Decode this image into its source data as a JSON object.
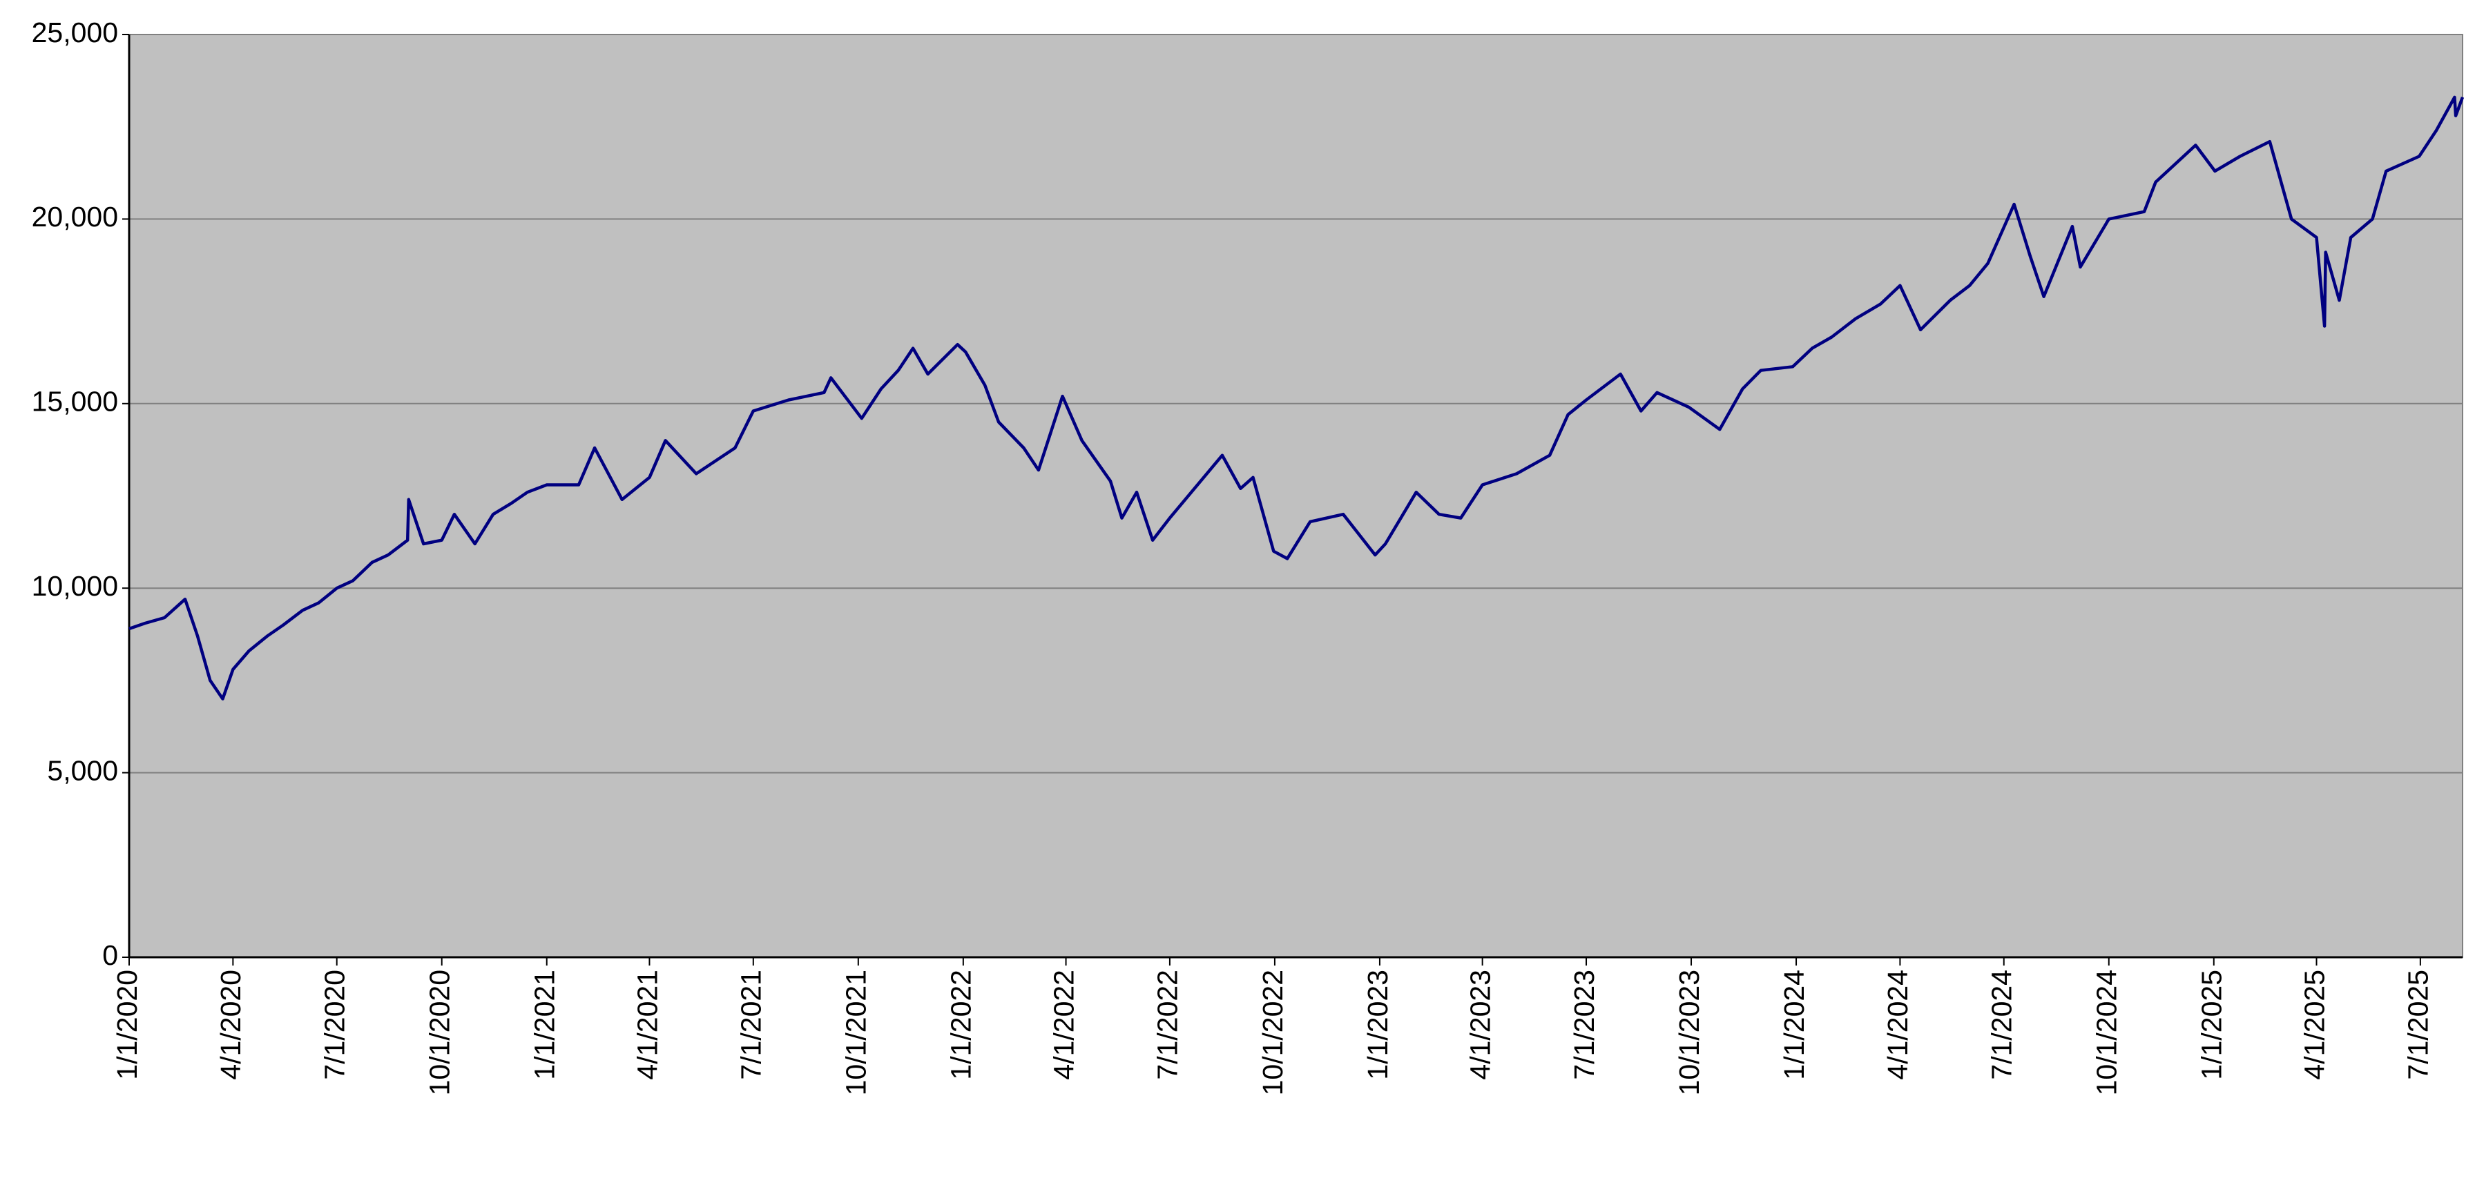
{
  "chart_data": {
    "type": "line",
    "x": [
      "2020-01-01",
      "2020-01-15",
      "2020-02-01",
      "2020-02-19",
      "2020-03-01",
      "2020-03-12",
      "2020-03-23",
      "2020-04-01",
      "2020-04-15",
      "2020-05-01",
      "2020-05-15",
      "2020-06-01",
      "2020-06-15",
      "2020-07-01",
      "2020-07-15",
      "2020-08-01",
      "2020-08-15",
      "2020-09-01",
      "2020-09-02",
      "2020-09-15",
      "2020-10-01",
      "2020-10-12",
      "2020-10-30",
      "2020-11-15",
      "2020-12-01",
      "2020-12-15",
      "2021-01-01",
      "2021-01-29",
      "2021-02-12",
      "2021-03-08",
      "2021-04-01",
      "2021-04-15",
      "2021-05-12",
      "2021-06-15",
      "2021-07-01",
      "2021-08-01",
      "2021-09-01",
      "2021-09-07",
      "2021-10-04",
      "2021-10-21",
      "2021-11-05",
      "2021-11-18",
      "2021-12-01",
      "2021-12-27",
      "2022-01-03",
      "2022-01-20",
      "2022-02-01",
      "2022-02-23",
      "2022-03-08",
      "2022-03-29",
      "2022-04-15",
      "2022-05-10",
      "2022-05-20",
      "2022-06-02",
      "2022-06-16",
      "2022-07-01",
      "2022-08-16",
      "2022-09-01",
      "2022-09-12",
      "2022-09-30",
      "2022-10-12",
      "2022-11-01",
      "2022-11-30",
      "2022-12-28",
      "2023-01-06",
      "2023-02-02",
      "2023-02-22",
      "2023-03-13",
      "2023-04-01",
      "2023-05-01",
      "2023-05-30",
      "2023-06-15",
      "2023-07-01",
      "2023-07-31",
      "2023-08-18",
      "2023-09-01",
      "2023-09-29",
      "2023-10-26",
      "2023-11-15",
      "2023-12-01",
      "2023-12-29",
      "2024-01-15",
      "2024-02-01",
      "2024-02-22",
      "2024-03-15",
      "2024-04-01",
      "2024-04-19",
      "2024-05-15",
      "2024-06-01",
      "2024-06-17",
      "2024-07-10",
      "2024-07-24",
      "2024-08-05",
      "2024-08-30",
      "2024-09-06",
      "2024-10-01",
      "2024-11-01",
      "2024-11-11",
      "2024-12-16",
      "2025-01-02",
      "2025-01-24",
      "2025-02-19",
      "2025-03-10",
      "2025-04-01",
      "2025-04-08",
      "2025-04-09",
      "2025-04-21",
      "2025-05-01",
      "2025-05-20",
      "2025-06-01",
      "2025-06-30",
      "2025-07-15",
      "2025-07-31",
      "2025-08-01",
      "2025-08-07"
    ],
    "values": [
      8900,
      9050,
      9200,
      9700,
      8700,
      7500,
      7000,
      7800,
      8300,
      8700,
      9000,
      9400,
      9600,
      10000,
      10200,
      10700,
      10900,
      11300,
      12400,
      11200,
      11300,
      12000,
      11200,
      12000,
      12300,
      12600,
      12800,
      12800,
      13800,
      12400,
      13000,
      14000,
      13100,
      13800,
      14800,
      15100,
      15300,
      15700,
      14600,
      15400,
      15900,
      16500,
      15800,
      16600,
      16400,
      15500,
      14500,
      13800,
      13200,
      15200,
      14000,
      12900,
      11900,
      12600,
      11300,
      11900,
      13600,
      12700,
      13000,
      11000,
      10800,
      11800,
      12000,
      10900,
      11200,
      12600,
      12000,
      11900,
      12800,
      13100,
      13600,
      14700,
      15100,
      15800,
      14800,
      15300,
      14900,
      14300,
      15400,
      15900,
      16000,
      16500,
      16800,
      17300,
      17700,
      18200,
      17000,
      17800,
      18200,
      18800,
      20400,
      19000,
      17900,
      19800,
      18700,
      20000,
      20200,
      21000,
      22000,
      21300,
      21700,
      22100,
      20000,
      19500,
      17100,
      19100,
      17800,
      19500,
      20000,
      21300,
      21700,
      22400,
      23300,
      22800,
      23300
    ],
    "color": "#000080",
    "xlim": [
      "2020-01-01",
      "2025-08-07"
    ],
    "xticks": [
      {
        "value": "2020-01-01",
        "label": "1/1/2020"
      },
      {
        "value": "2020-04-01",
        "label": "4/1/2020"
      },
      {
        "value": "2020-07-01",
        "label": "7/1/2020"
      },
      {
        "value": "2020-10-01",
        "label": "10/1/2020"
      },
      {
        "value": "2021-01-01",
        "label": "1/1/2021"
      },
      {
        "value": "2021-04-01",
        "label": "4/1/2021"
      },
      {
        "value": "2021-07-01",
        "label": "7/1/2021"
      },
      {
        "value": "2021-10-01",
        "label": "10/1/2021"
      },
      {
        "value": "2022-01-01",
        "label": "1/1/2022"
      },
      {
        "value": "2022-04-01",
        "label": "4/1/2022"
      },
      {
        "value": "2022-07-01",
        "label": "7/1/2022"
      },
      {
        "value": "2022-10-01",
        "label": "10/1/2022"
      },
      {
        "value": "2023-01-01",
        "label": "1/1/2023"
      },
      {
        "value": "2023-04-01",
        "label": "4/1/2023"
      },
      {
        "value": "2023-07-01",
        "label": "7/1/2023"
      },
      {
        "value": "2023-10-01",
        "label": "10/1/2023"
      },
      {
        "value": "2024-01-01",
        "label": "1/1/2024"
      },
      {
        "value": "2024-04-01",
        "label": "4/1/2024"
      },
      {
        "value": "2024-07-01",
        "label": "7/1/2024"
      },
      {
        "value": "2024-10-01",
        "label": "10/1/2024"
      },
      {
        "value": "2025-01-01",
        "label": "1/1/2025"
      },
      {
        "value": "2025-04-01",
        "label": "4/1/2025"
      },
      {
        "value": "2025-07-01",
        "label": "7/1/2025"
      }
    ],
    "ylim": [
      0,
      25000
    ],
    "yticks": [
      0,
      {
        "value": 5000,
        "label": "5,000"
      },
      {
        "value": 10000,
        "label": "10,000"
      },
      {
        "value": 15000,
        "label": "15,000"
      },
      {
        "value": 20000,
        "label": "20,000"
      },
      {
        "value": 25000,
        "label": "25,000"
      }
    ],
    "grid": true
  }
}
